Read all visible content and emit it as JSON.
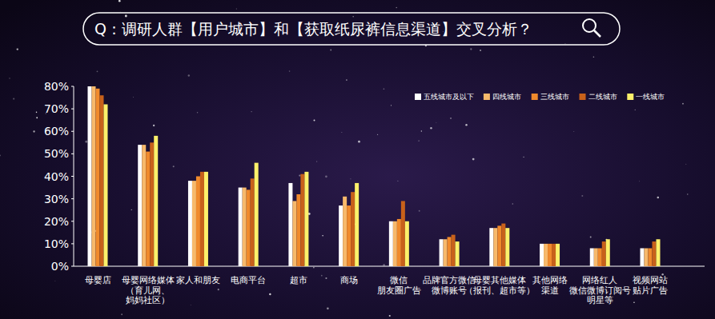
{
  "chart_data": {
    "type": "bar",
    "title": "Q：调研人群【用户城市】和【获取纸尿裤信息渠道】交叉分析？",
    "categories": [
      "母婴店",
      "母婴网络媒体\n（育儿网、\n妈妈社区）",
      "家人和朋友",
      "电商平台",
      "超市",
      "商场",
      "微信\n朋友圈广告",
      "品牌官方微信\n微博账号",
      "母婴其他媒体\n（报刊、超市等）",
      "其他网络\n渠道",
      "网络红人\n微信微博订阅号\n明星等",
      "视频网站\n贴片广告"
    ],
    "series": [
      {
        "name": "五线城市及以下",
        "color": "#ffffff",
        "values": [
          80,
          54,
          38,
          35,
          37,
          27,
          20,
          12,
          17,
          10,
          8,
          8
        ]
      },
      {
        "name": "四线城市",
        "color": "#f7b96b",
        "values": [
          80,
          54,
          38,
          35,
          29,
          31,
          20,
          12,
          17,
          10,
          8,
          8
        ]
      },
      {
        "name": "三线城市",
        "color": "#f08a2c",
        "values": [
          79,
          51,
          40,
          34,
          32,
          27,
          21,
          13,
          18,
          10,
          8,
          8
        ]
      },
      {
        "name": "二线城市",
        "color": "#c8611a",
        "values": [
          76,
          55,
          42,
          39,
          41,
          33,
          29,
          14,
          19,
          10,
          11,
          11
        ]
      },
      {
        "name": "一线城市",
        "color": "#fdf06a",
        "values": [
          72,
          58,
          42,
          46,
          42,
          37,
          20,
          11,
          17,
          10,
          12,
          12
        ]
      }
    ],
    "ylim": [
      0,
      80
    ],
    "yticks": [
      {
        "value": 0,
        "label": "0%"
      },
      {
        "value": 10,
        "label": "10%"
      },
      {
        "value": 20,
        "label": "20%"
      },
      {
        "value": 30,
        "label": "30%"
      },
      {
        "value": 40,
        "label": "40%"
      },
      {
        "value": 50,
        "label": "50%"
      },
      {
        "value": 60,
        "label": "60%"
      },
      {
        "value": 70,
        "label": "70%"
      },
      {
        "value": 80,
        "label": "80%"
      }
    ],
    "grid": false,
    "legend": "upper right"
  }
}
